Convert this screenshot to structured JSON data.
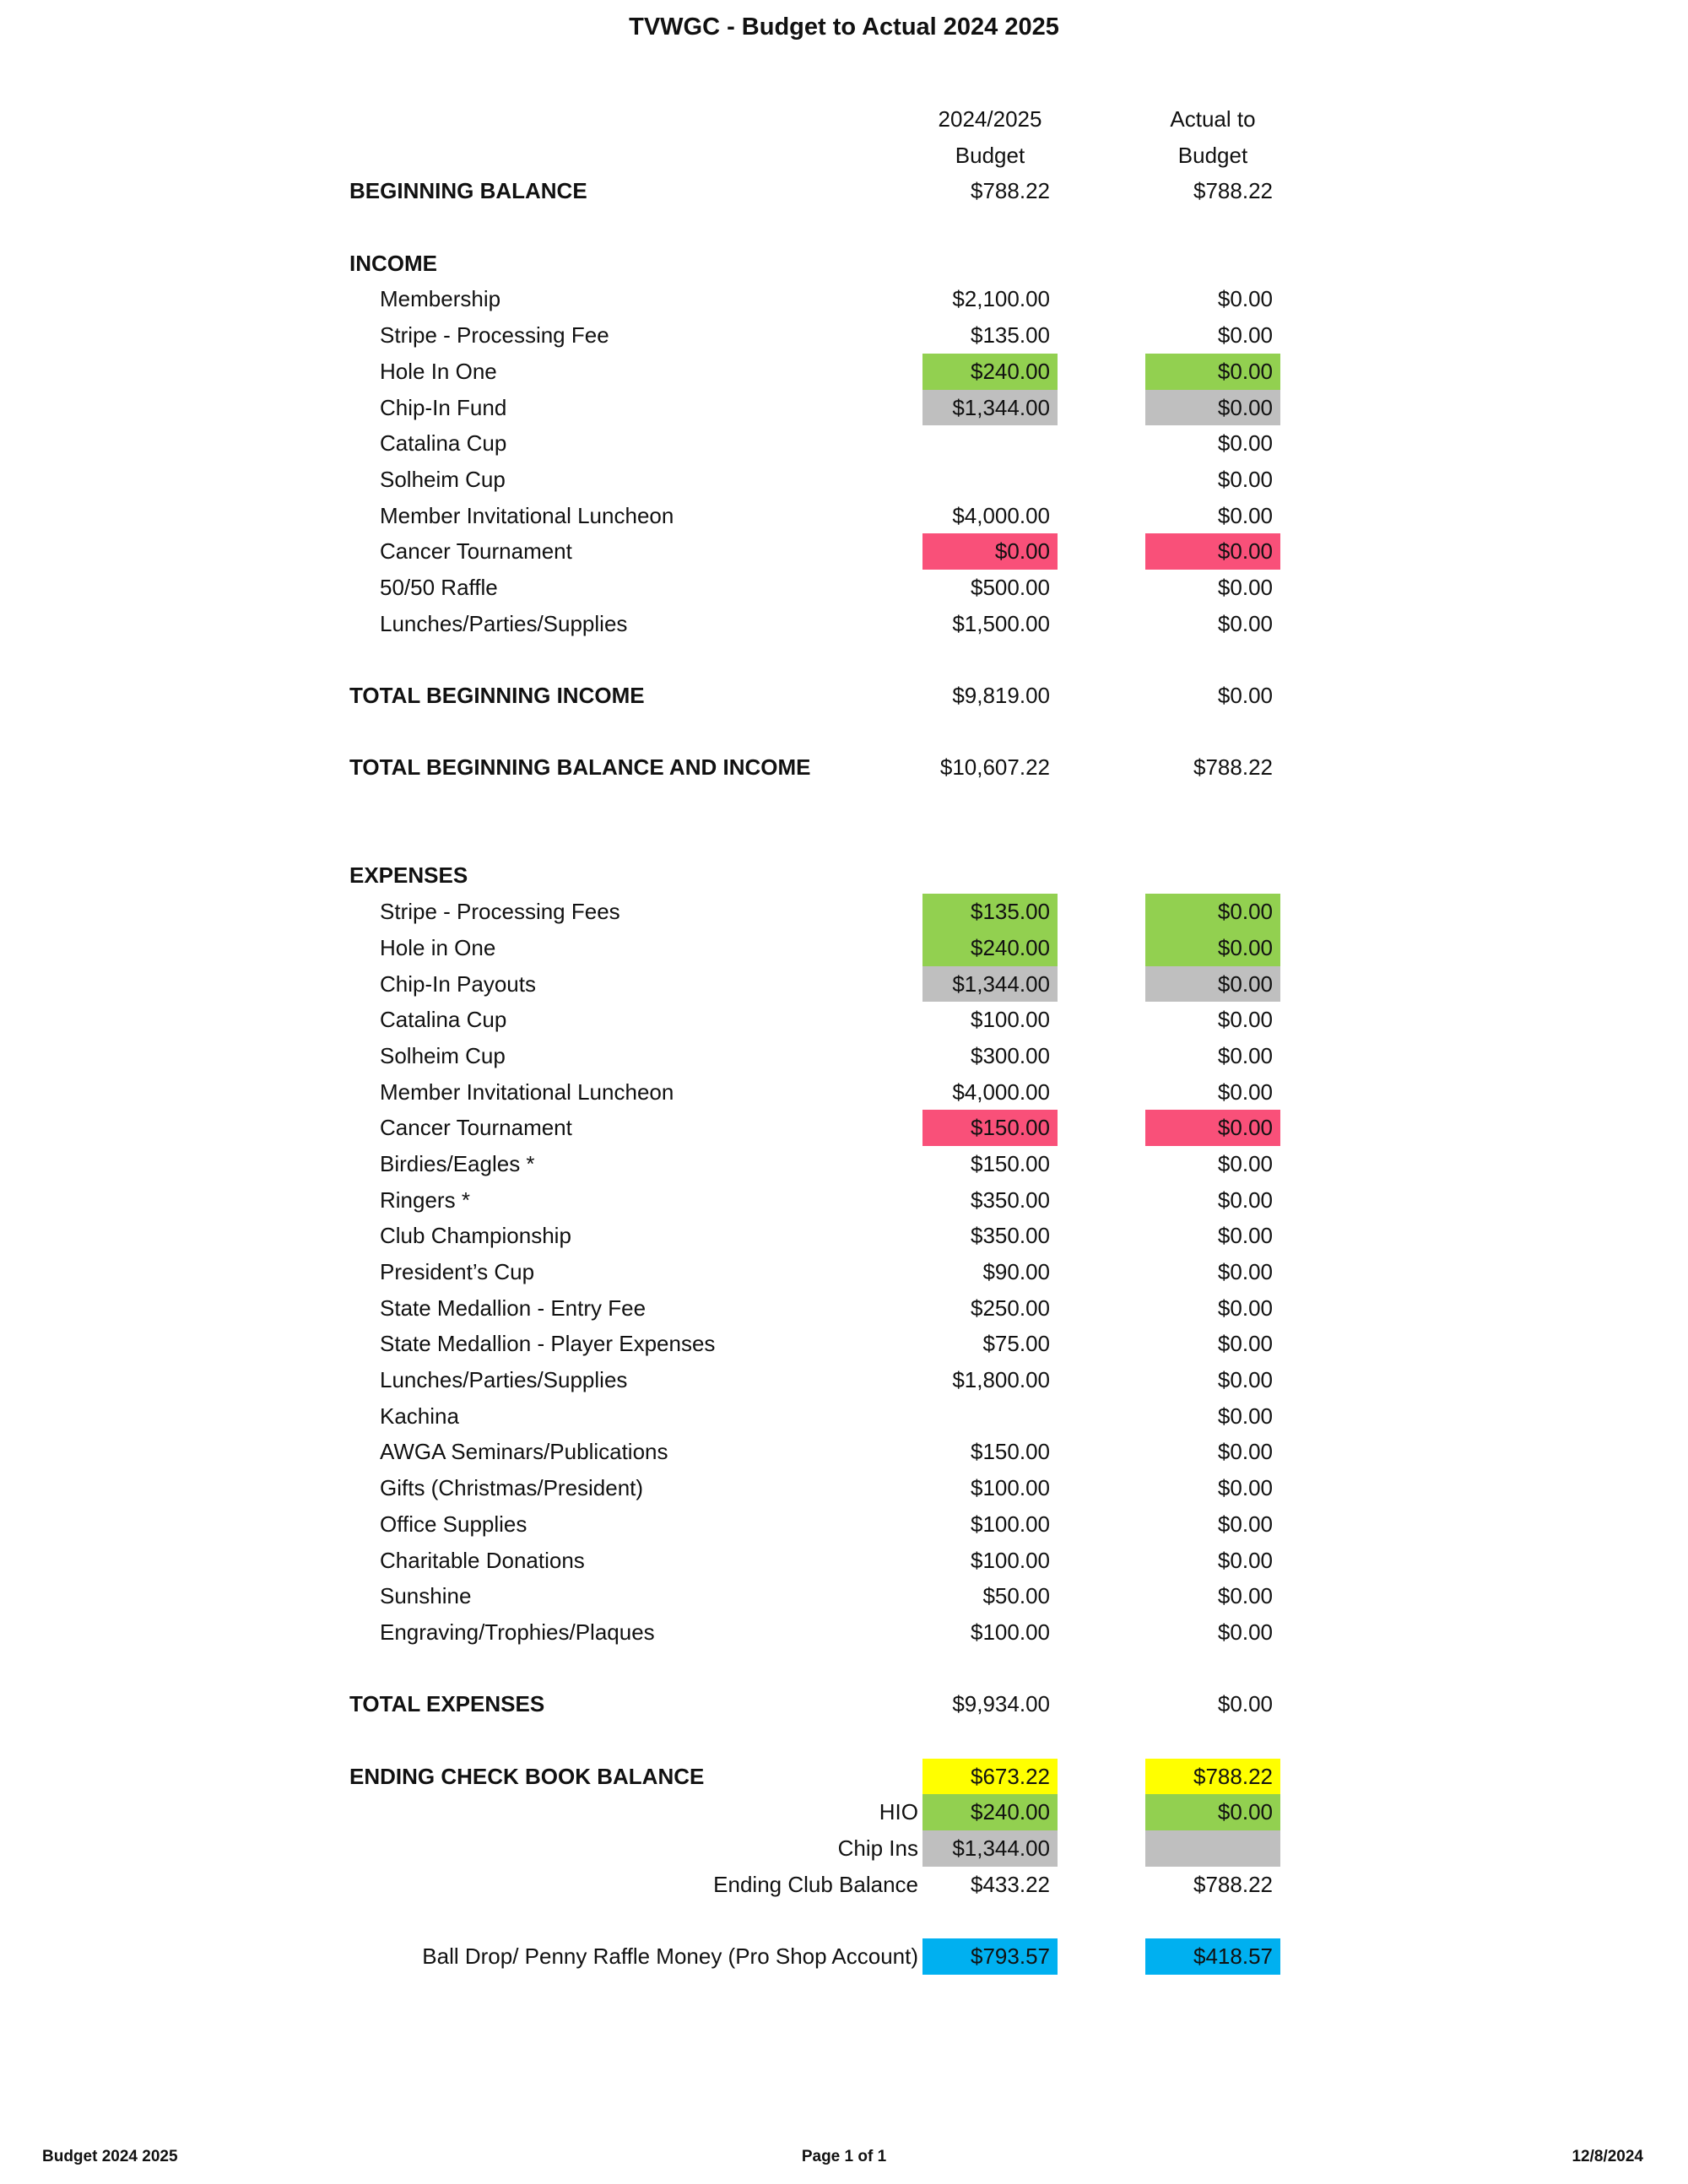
{
  "title": "TVWGC - Budget to Actual 2024 2025",
  "columns": {
    "budget": [
      "2024/2025",
      "Budget"
    ],
    "actual": [
      "Actual to",
      "Budget"
    ]
  },
  "colors": {
    "green": "#92d050",
    "gray": "#bfbfbf",
    "pink": "#f95079",
    "yellow": "#ffff00",
    "blue": "#00b0f0"
  },
  "beginning_balance": {
    "label": "BEGINNING BALANCE",
    "budget": "$788.22",
    "actual": "$788.22"
  },
  "income": {
    "heading": "INCOME",
    "items": [
      {
        "label": "Membership",
        "budget": "$2,100.00",
        "actual": "$0.00"
      },
      {
        "label": "Stripe - Processing Fee",
        "budget": "$135.00",
        "actual": "$0.00"
      },
      {
        "label": "Hole In One",
        "budget": "$240.00",
        "actual": "$0.00",
        "color": "green"
      },
      {
        "label": "Chip-In Fund",
        "budget": "$1,344.00",
        "actual": "$0.00",
        "color": "gray"
      },
      {
        "label": "Catalina Cup",
        "budget": "",
        "actual": "$0.00"
      },
      {
        "label": "Solheim Cup",
        "budget": "",
        "actual": "$0.00"
      },
      {
        "label": "Member Invitational Luncheon",
        "budget": "$4,000.00",
        "actual": "$0.00"
      },
      {
        "label": "Cancer Tournament",
        "budget": "$0.00",
        "actual": "$0.00",
        "color": "pink"
      },
      {
        "label": "50/50 Raffle",
        "budget": "$500.00",
        "actual": "$0.00"
      },
      {
        "label": "Lunches/Parties/Supplies",
        "budget": "$1,500.00",
        "actual": "$0.00"
      }
    ]
  },
  "total_income": {
    "label": "TOTAL BEGINNING INCOME",
    "budget": "$9,819.00",
    "actual": "$0.00"
  },
  "total_balance_income": {
    "label": "TOTAL BEGINNING BALANCE AND INCOME",
    "budget": "$10,607.22",
    "actual": "$788.22"
  },
  "expenses": {
    "heading": "EXPENSES",
    "items": [
      {
        "label": "Stripe - Processing Fees",
        "budget": "$135.00",
        "actual": "$0.00",
        "color": "green"
      },
      {
        "label": "Hole in One",
        "budget": "$240.00",
        "actual": "$0.00",
        "color": "green"
      },
      {
        "label": "Chip-In Payouts",
        "budget": "$1,344.00",
        "actual": "$0.00",
        "color": "gray"
      },
      {
        "label": "Catalina Cup",
        "budget": "$100.00",
        "actual": "$0.00"
      },
      {
        "label": "Solheim Cup",
        "budget": "$300.00",
        "actual": "$0.00"
      },
      {
        "label": "Member Invitational Luncheon",
        "budget": "$4,000.00",
        "actual": "$0.00"
      },
      {
        "label": "Cancer Tournament",
        "budget": "$150.00",
        "actual": "$0.00",
        "color": "pink"
      },
      {
        "label": "Birdies/Eagles *",
        "budget": "$150.00",
        "actual": "$0.00"
      },
      {
        "label": "Ringers *",
        "budget": "$350.00",
        "actual": "$0.00"
      },
      {
        "label": "Club Championship",
        "budget": "$350.00",
        "actual": "$0.00"
      },
      {
        "label": "President’s Cup",
        "budget": "$90.00",
        "actual": "$0.00"
      },
      {
        "label": "State Medallion - Entry Fee",
        "budget": "$250.00",
        "actual": "$0.00"
      },
      {
        "label": "State Medallion - Player Expenses",
        "budget": "$75.00",
        "actual": "$0.00"
      },
      {
        "label": "Lunches/Parties/Supplies",
        "budget": "$1,800.00",
        "actual": "$0.00"
      },
      {
        "label": "Kachina",
        "budget": "",
        "actual": "$0.00"
      },
      {
        "label": "AWGA Seminars/Publications",
        "budget": "$150.00",
        "actual": "$0.00"
      },
      {
        "label": "Gifts (Christmas/President)",
        "budget": "$100.00",
        "actual": "$0.00"
      },
      {
        "label": "Office Supplies",
        "budget": "$100.00",
        "actual": "$0.00"
      },
      {
        "label": "Charitable Donations",
        "budget": "$100.00",
        "actual": "$0.00"
      },
      {
        "label": "Sunshine",
        "budget": "$50.00",
        "actual": "$0.00"
      },
      {
        "label": "Engraving/Trophies/Plaques",
        "budget": "$100.00",
        "actual": "$0.00"
      }
    ]
  },
  "total_expenses": {
    "label": "TOTAL EXPENSES",
    "budget": "$9,934.00",
    "actual": "$0.00"
  },
  "ending": {
    "check_book": {
      "label": "ENDING CHECK BOOK BALANCE",
      "budget": "$673.22",
      "actual": "$788.22",
      "color": "yellow"
    },
    "hio": {
      "label": "HIO",
      "budget": "$240.00",
      "actual": "$0.00",
      "color": "green"
    },
    "chip_ins": {
      "label": "Chip Ins",
      "budget": "$1,344.00",
      "actual": "",
      "color": "gray"
    },
    "club_balance": {
      "label": "Ending Club Balance",
      "budget": "$433.22",
      "actual": "$788.22"
    },
    "pro_shop": {
      "label": "Ball Drop/ Penny Raffle Money (Pro Shop Account)",
      "budget": "$793.57",
      "actual": "$418.57",
      "color": "blue"
    }
  },
  "footer": {
    "left": "Budget 2024 2025",
    "center": "Page 1 of 1",
    "right": "12/8/2024"
  }
}
